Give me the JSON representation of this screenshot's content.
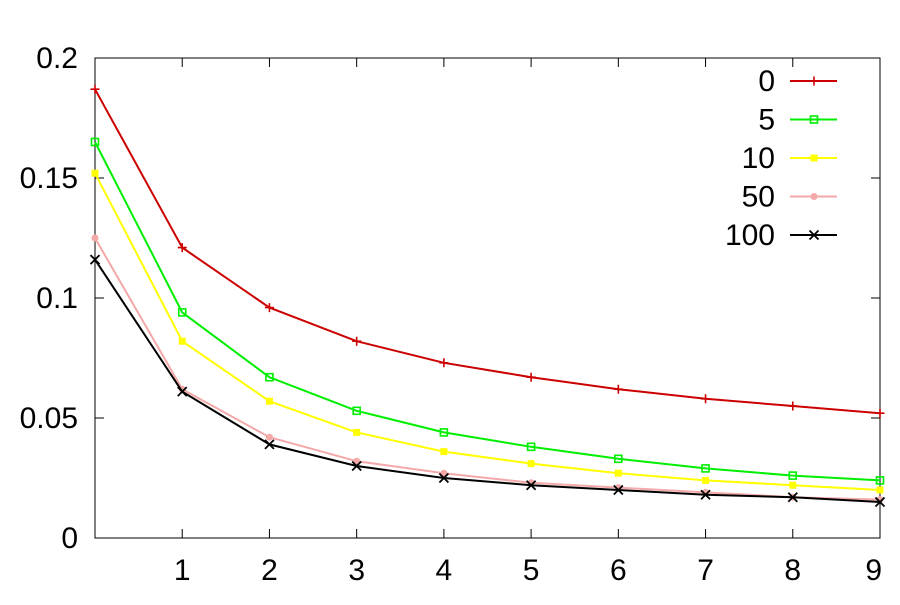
{
  "chart_data": {
    "type": "line",
    "title": "",
    "xlabel": "",
    "ylabel": "",
    "x": [
      0,
      1,
      2,
      3,
      4,
      5,
      6,
      7,
      8,
      9
    ],
    "xlim": [
      0,
      9
    ],
    "ylim": [
      0,
      0.2
    ],
    "x_ticks": [
      {
        "value": 1,
        "label": "1"
      },
      {
        "value": 2,
        "label": "2"
      },
      {
        "value": 3,
        "label": "3"
      },
      {
        "value": 4,
        "label": "4"
      },
      {
        "value": 5,
        "label": "5"
      },
      {
        "value": 6,
        "label": "6"
      },
      {
        "value": 7,
        "label": "7"
      },
      {
        "value": 8,
        "label": "8"
      },
      {
        "value": 9,
        "label": "9"
      }
    ],
    "y_ticks": [
      {
        "value": 0,
        "label": "0"
      },
      {
        "value": 0.05,
        "label": "0.05"
      },
      {
        "value": 0.1,
        "label": "0.1"
      },
      {
        "value": 0.15,
        "label": "0.15"
      },
      {
        "value": 0.2,
        "label": "0.2"
      }
    ],
    "grid": false,
    "legend_position": "top-right",
    "series": [
      {
        "name": "0",
        "color": "#cc0000",
        "marker": "plus",
        "values": [
          0.187,
          0.121,
          0.096,
          0.082,
          0.073,
          0.067,
          0.062,
          0.058,
          0.055,
          0.052
        ]
      },
      {
        "name": "5",
        "color": "#00ee00",
        "marker": "open-square",
        "values": [
          0.165,
          0.094,
          0.067,
          0.053,
          0.044,
          0.038,
          0.033,
          0.029,
          0.026,
          0.024
        ]
      },
      {
        "name": "10",
        "color": "#ffff00",
        "marker": "filled-square",
        "values": [
          0.152,
          0.082,
          0.057,
          0.044,
          0.036,
          0.031,
          0.027,
          0.024,
          0.022,
          0.02
        ]
      },
      {
        "name": "50",
        "color": "#f4a8a8",
        "marker": "filled-circle",
        "values": [
          0.125,
          0.062,
          0.042,
          0.032,
          0.027,
          0.023,
          0.021,
          0.019,
          0.017,
          0.016
        ]
      },
      {
        "name": "100",
        "color": "#000000",
        "marker": "cross",
        "values": [
          0.116,
          0.061,
          0.039,
          0.03,
          0.025,
          0.022,
          0.02,
          0.018,
          0.017,
          0.015
        ]
      }
    ]
  }
}
